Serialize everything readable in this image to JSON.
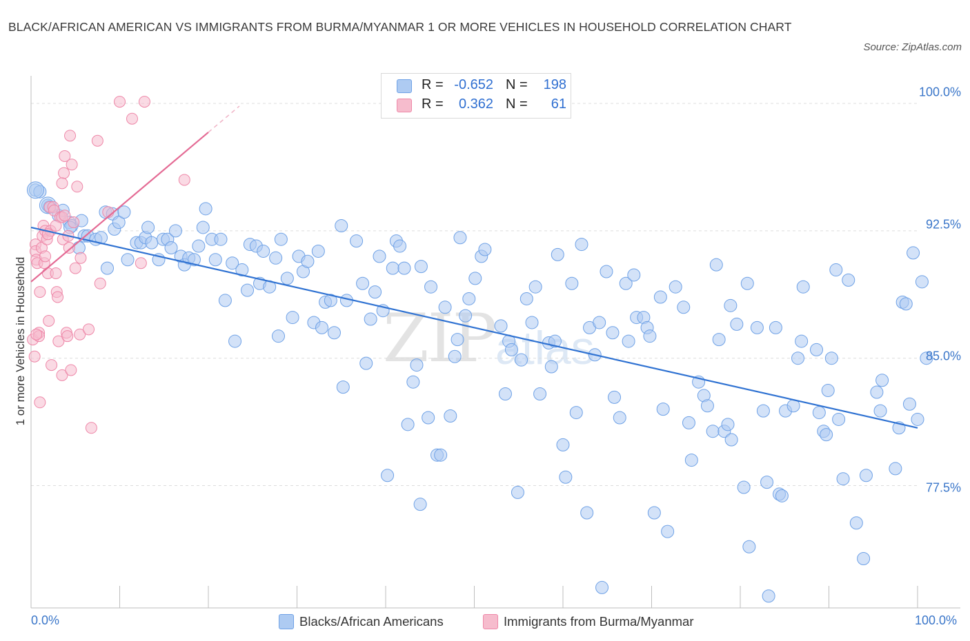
{
  "title": "BLACK/AFRICAN AMERICAN VS IMMIGRANTS FROM BURMA/MYANMAR 1 OR MORE VEHICLES IN HOUSEHOLD CORRELATION CHART",
  "source": "Source: ZipAtlas.com",
  "watermark": {
    "zip": "ZIP",
    "atlas": "atlas"
  },
  "legend": [
    {
      "r_label": "R =",
      "r_value": "-0.652",
      "n_label": "N =",
      "n_value": "198",
      "color": "#aecbf2"
    },
    {
      "r_label": "R =",
      "r_value": "0.362",
      "n_label": "N =",
      "n_value": "61",
      "color": "#f6bccd"
    }
  ],
  "chart_data": {
    "type": "scatter",
    "title": "BLACK/AFRICAN AMERICAN VS IMMIGRANTS FROM BURMA/MYANMAR 1 OR MORE VEHICLES IN HOUSEHOLD CORRELATION CHART",
    "xlabel": "",
    "ylabel": "1 or more Vehicles in Household",
    "x_tick_labels": [
      "0.0%",
      "100.0%"
    ],
    "y_tick_labels": [
      "100.0%",
      "92.5%",
      "85.0%",
      "77.5%"
    ],
    "y_ticks": [
      100.0,
      92.5,
      85.0,
      77.5
    ],
    "xlim": [
      0,
      100
    ],
    "ylim": [
      70.3,
      101.3
    ],
    "grid": "horizontal dashed",
    "legend_position": "top-center",
    "series": [
      {
        "name": "Blacks/African Americans",
        "color": "#6ea1e6",
        "fill": "#aecbf2",
        "trend": {
          "x": [
            0,
            100
          ],
          "y": [
            92.7,
            80.9
          ]
        },
        "points": [
          [
            0.5,
            94.9
          ],
          [
            1.0,
            94.8
          ],
          [
            1.9,
            94.0
          ],
          [
            2.1,
            93.9
          ],
          [
            3.1,
            93.4
          ],
          [
            3.6,
            93.7
          ],
          [
            4.3,
            93.0
          ],
          [
            4.6,
            92.8
          ],
          [
            5.7,
            93.1
          ],
          [
            4.4,
            92.7
          ],
          [
            5.4,
            91.5
          ],
          [
            6.0,
            92.2
          ],
          [
            6.4,
            92.2
          ],
          [
            7.3,
            92.0
          ],
          [
            7.9,
            92.1
          ],
          [
            8.4,
            93.6
          ],
          [
            8.6,
            90.3
          ],
          [
            9.2,
            93.5
          ],
          [
            9.4,
            92.6
          ],
          [
            9.9,
            93.0
          ],
          [
            10.5,
            93.6
          ],
          [
            10.9,
            90.8
          ],
          [
            11.9,
            91.8
          ],
          [
            12.4,
            91.8
          ],
          [
            12.9,
            92.1
          ],
          [
            13.2,
            92.7
          ],
          [
            13.6,
            91.8
          ],
          [
            14.4,
            90.8
          ],
          [
            14.9,
            92.0
          ],
          [
            15.4,
            92.0
          ],
          [
            15.8,
            91.5
          ],
          [
            16.3,
            92.5
          ],
          [
            16.9,
            91.0
          ],
          [
            17.3,
            90.5
          ],
          [
            17.8,
            90.9
          ],
          [
            18.4,
            90.8
          ],
          [
            18.9,
            91.6
          ],
          [
            19.4,
            92.7
          ],
          [
            19.7,
            93.8
          ],
          [
            20.4,
            92.0
          ],
          [
            20.8,
            90.8
          ],
          [
            21.4,
            92.0
          ],
          [
            21.9,
            88.4
          ],
          [
            22.7,
            90.6
          ],
          [
            23.0,
            86.0
          ],
          [
            23.8,
            90.2
          ],
          [
            24.4,
            89.0
          ],
          [
            24.7,
            91.7
          ],
          [
            25.4,
            91.6
          ],
          [
            25.8,
            89.4
          ],
          [
            26.2,
            91.3
          ],
          [
            26.9,
            89.2
          ],
          [
            27.6,
            90.9
          ],
          [
            27.9,
            86.3
          ],
          [
            28.2,
            92.0
          ],
          [
            28.9,
            89.7
          ],
          [
            29.5,
            87.4
          ],
          [
            30.2,
            91.0
          ],
          [
            30.7,
            90.1
          ],
          [
            31.2,
            90.7
          ],
          [
            31.9,
            87.1
          ],
          [
            32.4,
            91.3
          ],
          [
            32.8,
            86.8
          ],
          [
            33.2,
            88.3
          ],
          [
            33.8,
            88.4
          ],
          [
            34.2,
            86.5
          ],
          [
            35.0,
            92.8
          ],
          [
            35.2,
            83.3
          ],
          [
            35.6,
            88.4
          ],
          [
            36.7,
            91.9
          ],
          [
            37.4,
            89.4
          ],
          [
            37.8,
            84.7
          ],
          [
            38.3,
            87.3
          ],
          [
            38.8,
            88.9
          ],
          [
            39.3,
            91.0
          ],
          [
            39.7,
            87.8
          ],
          [
            40.2,
            78.1
          ],
          [
            40.8,
            90.3
          ],
          [
            41.2,
            91.9
          ],
          [
            41.6,
            91.6
          ],
          [
            42.1,
            90.3
          ],
          [
            42.5,
            81.1
          ],
          [
            43.1,
            83.6
          ],
          [
            43.5,
            84.6
          ],
          [
            43.9,
            76.4
          ],
          [
            44.0,
            90.4
          ],
          [
            44.8,
            81.5
          ],
          [
            45.1,
            89.2
          ],
          [
            45.8,
            79.3
          ],
          [
            46.2,
            79.3
          ],
          [
            46.7,
            88.0
          ],
          [
            47.3,
            81.6
          ],
          [
            47.8,
            85.1
          ],
          [
            48.1,
            86.1
          ],
          [
            48.4,
            92.1
          ],
          [
            49.0,
            87.5
          ],
          [
            49.4,
            88.5
          ],
          [
            50.1,
            89.7
          ],
          [
            50.8,
            91.0
          ],
          [
            51.2,
            91.4
          ],
          [
            53.0,
            86.9
          ],
          [
            53.5,
            82.9
          ],
          [
            53.9,
            86.0
          ],
          [
            54.2,
            85.5
          ],
          [
            54.9,
            77.1
          ],
          [
            55.3,
            84.9
          ],
          [
            55.9,
            88.5
          ],
          [
            56.5,
            87.1
          ],
          [
            56.9,
            89.2
          ],
          [
            57.4,
            82.9
          ],
          [
            58.4,
            85.9
          ],
          [
            58.7,
            84.5
          ],
          [
            59.1,
            86.0
          ],
          [
            59.4,
            91.1
          ],
          [
            60.0,
            79.9
          ],
          [
            60.3,
            78.0
          ],
          [
            61.0,
            89.4
          ],
          [
            61.5,
            81.8
          ],
          [
            62.1,
            91.7
          ],
          [
            62.7,
            75.9
          ],
          [
            63.0,
            86.8
          ],
          [
            63.6,
            85.2
          ],
          [
            64.1,
            87.1
          ],
          [
            64.4,
            71.5
          ],
          [
            64.9,
            90.1
          ],
          [
            65.6,
            86.5
          ],
          [
            65.8,
            82.7
          ],
          [
            66.4,
            81.5
          ],
          [
            67.1,
            89.4
          ],
          [
            67.4,
            86.0
          ],
          [
            68.0,
            89.9
          ],
          [
            68.3,
            87.4
          ],
          [
            69.1,
            87.4
          ],
          [
            69.5,
            86.8
          ],
          [
            69.8,
            86.3
          ],
          [
            70.3,
            75.9
          ],
          [
            71.0,
            88.6
          ],
          [
            71.3,
            82.0
          ],
          [
            71.8,
            74.8
          ],
          [
            72.7,
            89.2
          ],
          [
            73.6,
            88.0
          ],
          [
            74.2,
            81.2
          ],
          [
            74.5,
            79.0
          ],
          [
            75.3,
            83.6
          ],
          [
            75.9,
            82.8
          ],
          [
            76.3,
            82.2
          ],
          [
            76.9,
            80.7
          ],
          [
            77.3,
            90.5
          ],
          [
            77.6,
            86.1
          ],
          [
            78.2,
            80.7
          ],
          [
            78.6,
            81.1
          ],
          [
            78.9,
            88.1
          ],
          [
            79.0,
            80.2
          ],
          [
            79.6,
            87.0
          ],
          [
            80.4,
            77.4
          ],
          [
            80.8,
            89.4
          ],
          [
            81.0,
            73.9
          ],
          [
            81.9,
            86.8
          ],
          [
            82.6,
            81.9
          ],
          [
            83.0,
            77.7
          ],
          [
            83.2,
            71.0
          ],
          [
            84.0,
            86.8
          ],
          [
            84.4,
            77.0
          ],
          [
            84.7,
            76.9
          ],
          [
            85.1,
            81.9
          ],
          [
            86.0,
            82.2
          ],
          [
            86.5,
            85.0
          ],
          [
            86.9,
            86.0
          ],
          [
            87.1,
            89.2
          ],
          [
            88.6,
            85.5
          ],
          [
            88.9,
            81.8
          ],
          [
            89.4,
            80.7
          ],
          [
            89.7,
            80.5
          ],
          [
            89.9,
            83.1
          ],
          [
            90.3,
            85.0
          ],
          [
            90.8,
            90.2
          ],
          [
            91.1,
            81.4
          ],
          [
            91.6,
            77.9
          ],
          [
            92.2,
            89.6
          ],
          [
            93.1,
            75.3
          ],
          [
            93.9,
            73.2
          ],
          [
            94.2,
            78.1
          ],
          [
            95.4,
            83.0
          ],
          [
            95.8,
            81.9
          ],
          [
            96.0,
            83.7
          ],
          [
            97.5,
            78.5
          ],
          [
            97.9,
            80.9
          ],
          [
            98.3,
            88.3
          ],
          [
            98.7,
            88.2
          ],
          [
            99.1,
            82.3
          ],
          [
            99.5,
            91.2
          ],
          [
            100.0,
            81.4
          ],
          [
            100.5,
            89.5
          ],
          [
            101.0,
            85.0
          ]
        ]
      },
      {
        "name": "Immigrants from Burma/Myanmar",
        "color": "#ee87a8",
        "fill": "#f6bccd",
        "trend": {
          "x": [
            0,
            20
          ],
          "y": [
            89.5,
            98.3
          ]
        },
        "points": [
          [
            0.2,
            86.1
          ],
          [
            0.4,
            85.1
          ],
          [
            0.5,
            91.7
          ],
          [
            0.5,
            91.3
          ],
          [
            0.6,
            90.8
          ],
          [
            0.7,
            90.6
          ],
          [
            0.9,
            86.5
          ],
          [
            0.9,
            86.3
          ],
          [
            1.0,
            88.9
          ],
          [
            1.0,
            82.4
          ],
          [
            1.2,
            91.5
          ],
          [
            1.3,
            92.2
          ],
          [
            1.4,
            92.8
          ],
          [
            1.5,
            90.6
          ],
          [
            1.6,
            92.5
          ],
          [
            1.8,
            92.0
          ],
          [
            1.9,
            90.0
          ],
          [
            2.0,
            87.2
          ],
          [
            2.1,
            93.9
          ],
          [
            2.2,
            92.5
          ],
          [
            2.3,
            84.6
          ],
          [
            2.5,
            93.9
          ],
          [
            2.6,
            93.7
          ],
          [
            2.8,
            90.0
          ],
          [
            2.9,
            88.9
          ],
          [
            3.0,
            88.6
          ],
          [
            3.1,
            86.0
          ],
          [
            3.3,
            93.3
          ],
          [
            3.5,
            84.0
          ],
          [
            3.5,
            93.3
          ],
          [
            3.6,
            92.0
          ],
          [
            3.7,
            95.9
          ],
          [
            3.8,
            96.9
          ],
          [
            3.8,
            93.4
          ],
          [
            4.0,
            86.5
          ],
          [
            4.1,
            86.3
          ],
          [
            4.2,
            92.2
          ],
          [
            4.3,
            91.5
          ],
          [
            4.4,
            98.1
          ],
          [
            4.5,
            84.3
          ],
          [
            4.6,
            96.4
          ],
          [
            4.8,
            93.0
          ],
          [
            5.0,
            90.3
          ],
          [
            5.2,
            95.1
          ],
          [
            5.5,
            86.4
          ],
          [
            5.6,
            90.9
          ],
          [
            6.5,
            86.7
          ],
          [
            6.8,
            80.9
          ],
          [
            7.5,
            97.8
          ],
          [
            7.8,
            89.4
          ],
          [
            8.7,
            93.6
          ],
          [
            10.0,
            100.1
          ],
          [
            11.4,
            99.1
          ],
          [
            12.4,
            90.6
          ],
          [
            12.8,
            100.1
          ],
          [
            17.3,
            95.5
          ],
          [
            3.5,
            95.3
          ],
          [
            2.8,
            92.8
          ],
          [
            1.9,
            92.3
          ],
          [
            1.6,
            91.0
          ],
          [
            0.6,
            86.4
          ]
        ]
      }
    ]
  }
}
